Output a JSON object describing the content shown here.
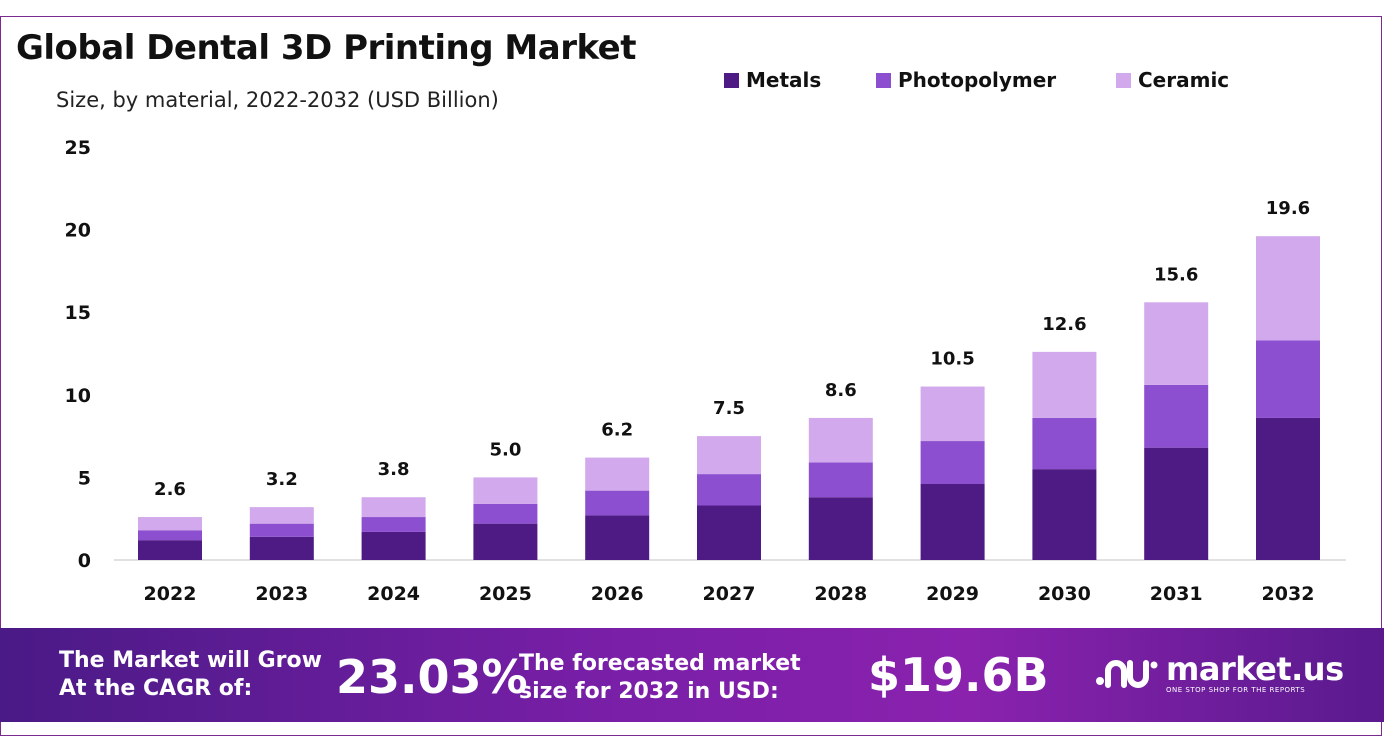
{
  "title": "Global Dental 3D Printing Market",
  "subtitle": "Size, by material, 2022-2032 (USD Billion)",
  "colors": {
    "metals": "#4e1a84",
    "photopolymer": "#8b4fcf",
    "ceramic": "#d2a9ec",
    "frame": "#7b2a8f"
  },
  "chart_data": {
    "type": "bar",
    "stacked": true,
    "title": "Global Dental 3D Printing Market",
    "subtitle": "Size, by material, 2022-2032 (USD Billion)",
    "categories": [
      "2022",
      "2023",
      "2024",
      "2025",
      "2026",
      "2027",
      "2028",
      "2029",
      "2030",
      "2031",
      "2032"
    ],
    "series": [
      {
        "name": "Metals",
        "color": "#4e1a84",
        "values": [
          1.2,
          1.4,
          1.7,
          2.2,
          2.7,
          3.3,
          3.8,
          4.6,
          5.5,
          6.8,
          8.6
        ]
      },
      {
        "name": "Photopolymer",
        "color": "#8b4fcf",
        "values": [
          0.6,
          0.8,
          0.9,
          1.2,
          1.5,
          1.9,
          2.1,
          2.6,
          3.1,
          3.8,
          4.7
        ]
      },
      {
        "name": "Ceramic",
        "color": "#d2a9ec",
        "values": [
          0.8,
          1.0,
          1.2,
          1.6,
          2.0,
          2.3,
          2.7,
          3.3,
          4.0,
          5.0,
          6.3
        ]
      }
    ],
    "totals": [
      "2.6",
      "3.2",
      "3.8",
      "5.0",
      "6.2",
      "7.5",
      "8.6",
      "10.5",
      "12.6",
      "15.6",
      "19.6"
    ],
    "yticks": [
      0,
      5,
      10,
      15,
      20,
      25
    ],
    "ylim": [
      0,
      25
    ],
    "xlabel": "",
    "ylabel": "",
    "grid": false,
    "legend_position": "top-right"
  },
  "banner": {
    "cagr_label_line1": "The Market will Grow",
    "cagr_label_line2": "At the CAGR of:",
    "cagr_value": "23.03%",
    "forecast_label_line1": "The forecasted market",
    "forecast_label_line2": "size for 2032 in USD:",
    "forecast_value": "$19.6B"
  },
  "logo": {
    "name": "market.us",
    "tagline": "ONE STOP SHOP FOR THE REPORTS"
  }
}
